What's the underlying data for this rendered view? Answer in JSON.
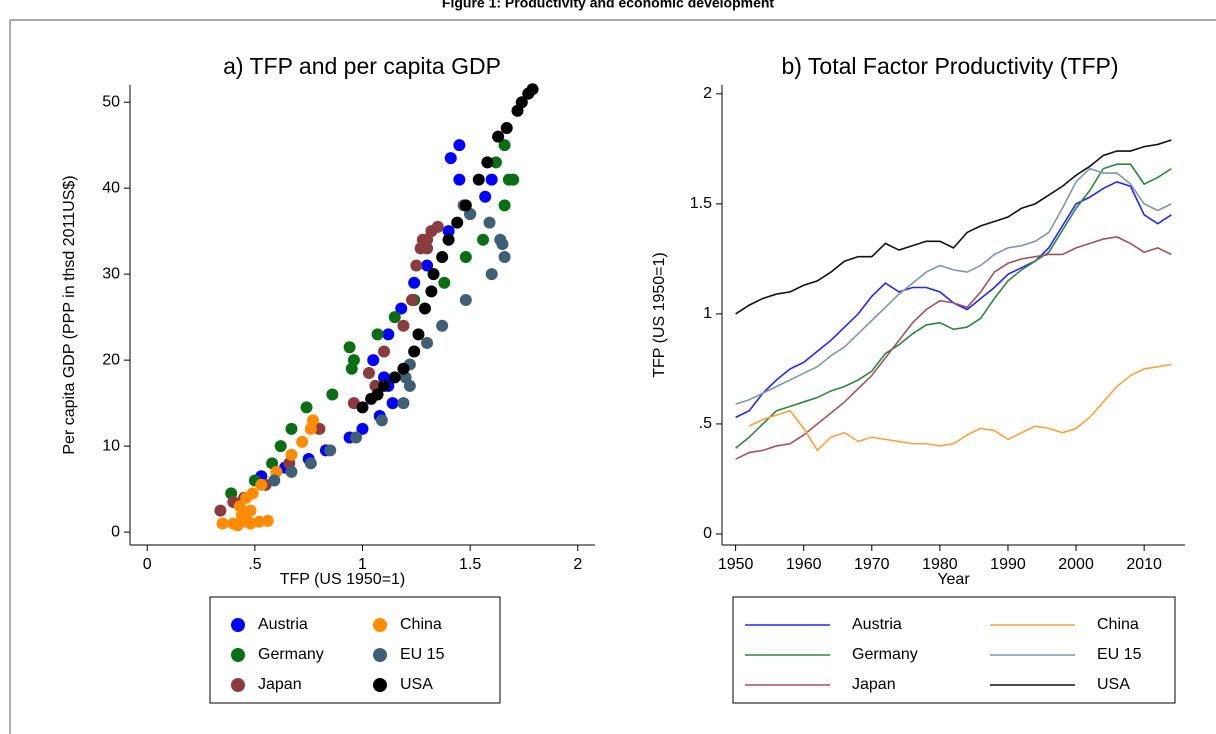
{
  "figure_title": "Figure 1: Productivity and economic development",
  "chart_data": [
    {
      "type": "scatter",
      "title": "a) TFP and per capita GDP",
      "x_label": "TFP (US 1950=1)",
      "y_label": "Per capita GDP (PPP in thsd 2011US$)",
      "xlim": [
        -0.08,
        2.08
      ],
      "xticks": [
        0,
        {
          "value": 0.5,
          "label": ".5"
        },
        1,
        {
          "value": 1.5,
          "label": "1.5"
        },
        2
      ],
      "ylim": [
        -1.5,
        52
      ],
      "yticks": [
        0,
        10,
        20,
        30,
        40,
        50
      ],
      "series": [
        {
          "name": "Austria",
          "color": "#0000ff",
          "x": [
            0.53,
            0.64,
            0.75,
            0.83,
            0.94,
            1.0,
            1.08,
            1.14,
            1.12,
            1.1,
            1.05,
            1.12,
            1.18,
            1.24,
            1.3,
            1.4,
            1.5,
            1.57,
            1.6,
            1.45,
            1.41,
            1.45
          ],
          "values": [
            6.5,
            7.5,
            8.5,
            9.5,
            11,
            12,
            13.5,
            15,
            17,
            18,
            20,
            23,
            26,
            29,
            31,
            35,
            37,
            39,
            41,
            45,
            43.5,
            41
          ]
        },
        {
          "name": "Germany",
          "color": "#0a6e14",
          "x": [
            0.39,
            0.5,
            0.58,
            0.62,
            0.67,
            0.74,
            0.86,
            0.95,
            0.96,
            0.94,
            1.07,
            1.15,
            1.24,
            1.38,
            1.48,
            1.56,
            1.66,
            1.68,
            1.62,
            1.66,
            1.7
          ],
          "values": [
            4.5,
            6,
            8,
            10,
            12,
            14.5,
            16,
            19,
            20,
            21.5,
            23,
            25,
            27,
            29,
            32,
            34,
            38,
            41,
            43,
            45,
            41
          ]
        },
        {
          "name": "Japan",
          "color": "#8b3a3e",
          "x": [
            0.34,
            0.4,
            0.45,
            0.55,
            0.66,
            0.8,
            0.96,
            1.06,
            1.03,
            1.1,
            1.19,
            1.23,
            1.25,
            1.27,
            1.3,
            1.35,
            1.32,
            1.28,
            1.3
          ],
          "values": [
            2.5,
            3.5,
            4,
            5.5,
            8,
            12,
            15,
            17,
            18.5,
            21,
            24,
            27,
            31,
            33,
            34,
            35.5,
            35,
            34,
            33
          ]
        },
        {
          "name": "China",
          "color": "#ff8c00",
          "x": [
            0.35,
            0.4,
            0.44,
            0.48,
            0.52,
            0.56,
            0.42,
            0.46,
            0.44,
            0.48,
            0.43,
            0.46,
            0.49,
            0.53,
            0.6,
            0.67,
            0.72,
            0.76,
            0.77
          ],
          "values": [
            1,
            1,
            1.2,
            1,
            1.2,
            1.3,
            0.8,
            1.5,
            2,
            2.5,
            3,
            4,
            4.5,
            5.5,
            7,
            9,
            10.5,
            12,
            13
          ]
        },
        {
          "name": "EU 15",
          "color": "#3e5f74",
          "x": [
            0.59,
            0.67,
            0.76,
            0.85,
            0.97,
            1.09,
            1.19,
            1.22,
            1.2,
            1.22,
            1.3,
            1.37,
            1.48,
            1.6,
            1.66,
            1.64,
            1.59,
            1.5,
            1.47,
            1.65
          ],
          "values": [
            6,
            7,
            8,
            9.5,
            11,
            13,
            15,
            17,
            18,
            19.5,
            22,
            24,
            27,
            30,
            32,
            34,
            36,
            37,
            38,
            33.5
          ]
        },
        {
          "name": "USA",
          "color": "#000000",
          "x": [
            1.0,
            1.04,
            1.07,
            1.1,
            1.15,
            1.19,
            1.24,
            1.26,
            1.29,
            1.32,
            1.33,
            1.37,
            1.4,
            1.44,
            1.48,
            1.54,
            1.58,
            1.63,
            1.67,
            1.72,
            1.74,
            1.77,
            1.79
          ],
          "values": [
            14.5,
            15.5,
            16,
            17,
            18,
            19,
            21,
            23,
            26,
            28,
            30,
            32,
            34,
            36,
            38,
            41,
            43,
            46,
            47,
            49,
            50,
            51,
            51.5
          ]
        }
      ]
    },
    {
      "type": "line",
      "title": "b) Total Factor Productivity (TFP)",
      "x_label": "Year",
      "y_label": "TFP (US 1950=1)",
      "x": [
        1950,
        1952,
        1954,
        1956,
        1958,
        1960,
        1962,
        1964,
        1966,
        1968,
        1970,
        1972,
        1974,
        1976,
        1978,
        1980,
        1982,
        1984,
        1986,
        1988,
        1990,
        1992,
        1994,
        1996,
        1998,
        2000,
        2002,
        2004,
        2006,
        2008,
        2010,
        2012,
        2014
      ],
      "xlim": [
        1948,
        2016
      ],
      "xticks": [
        1950,
        1960,
        1970,
        1980,
        1990,
        2000,
        2010
      ],
      "ylim": [
        -0.05,
        2.04
      ],
      "yticks": [
        0,
        {
          "value": 0.5,
          "label": ".5"
        },
        1,
        {
          "value": 1.5,
          "label": "1.5"
        },
        2
      ],
      "series": [
        {
          "name": "Austria",
          "color": "#2424ff",
          "values": [
            0.53,
            0.56,
            0.64,
            0.7,
            0.75,
            0.78,
            0.83,
            0.88,
            0.94,
            1.0,
            1.08,
            1.14,
            1.1,
            1.12,
            1.12,
            1.1,
            1.05,
            1.02,
            1.07,
            1.12,
            1.18,
            1.21,
            1.24,
            1.3,
            1.4,
            1.5,
            1.53,
            1.57,
            1.6,
            1.58,
            1.45,
            1.41,
            1.45
          ]
        },
        {
          "name": "Germany",
          "color": "#2e8540",
          "values": [
            0.39,
            0.44,
            0.5,
            0.56,
            0.58,
            0.6,
            0.62,
            0.65,
            0.67,
            0.7,
            0.74,
            0.82,
            0.86,
            0.91,
            0.95,
            0.96,
            0.93,
            0.94,
            0.98,
            1.07,
            1.15,
            1.2,
            1.24,
            1.28,
            1.38,
            1.48,
            1.56,
            1.66,
            1.68,
            1.68,
            1.59,
            1.62,
            1.66
          ]
        },
        {
          "name": "Japan",
          "color": "#a0545a",
          "values": [
            0.34,
            0.37,
            0.38,
            0.4,
            0.41,
            0.45,
            0.5,
            0.55,
            0.6,
            0.66,
            0.72,
            0.8,
            0.88,
            0.96,
            1.02,
            1.06,
            1.05,
            1.03,
            1.1,
            1.19,
            1.23,
            1.25,
            1.26,
            1.27,
            1.27,
            1.3,
            1.32,
            1.34,
            1.35,
            1.32,
            1.28,
            1.3,
            1.27
          ]
        },
        {
          "name": "China",
          "color": "#ffa040",
          "values": [
            null,
            0.49,
            0.52,
            0.54,
            0.56,
            0.48,
            0.38,
            0.44,
            0.46,
            0.42,
            0.44,
            0.43,
            0.42,
            0.41,
            0.41,
            0.4,
            0.41,
            0.45,
            0.48,
            0.47,
            0.43,
            0.46,
            0.49,
            0.48,
            0.46,
            0.48,
            0.53,
            0.6,
            0.67,
            0.72,
            0.75,
            0.76,
            0.77
          ]
        },
        {
          "name": "EU 15",
          "color": "#7d97a8",
          "values": [
            0.59,
            0.61,
            0.64,
            0.67,
            0.7,
            0.73,
            0.76,
            0.81,
            0.85,
            0.91,
            0.97,
            1.03,
            1.09,
            1.14,
            1.19,
            1.22,
            1.2,
            1.19,
            1.22,
            1.27,
            1.3,
            1.31,
            1.33,
            1.37,
            1.48,
            1.6,
            1.66,
            1.64,
            1.64,
            1.59,
            1.5,
            1.47,
            1.5
          ]
        },
        {
          "name": "USA",
          "color": "#111111",
          "values": [
            1.0,
            1.04,
            1.07,
            1.09,
            1.1,
            1.13,
            1.15,
            1.19,
            1.24,
            1.26,
            1.26,
            1.32,
            1.29,
            1.31,
            1.33,
            1.33,
            1.3,
            1.37,
            1.4,
            1.42,
            1.44,
            1.48,
            1.5,
            1.54,
            1.58,
            1.63,
            1.67,
            1.72,
            1.74,
            1.74,
            1.76,
            1.77,
            1.79
          ]
        }
      ]
    }
  ]
}
